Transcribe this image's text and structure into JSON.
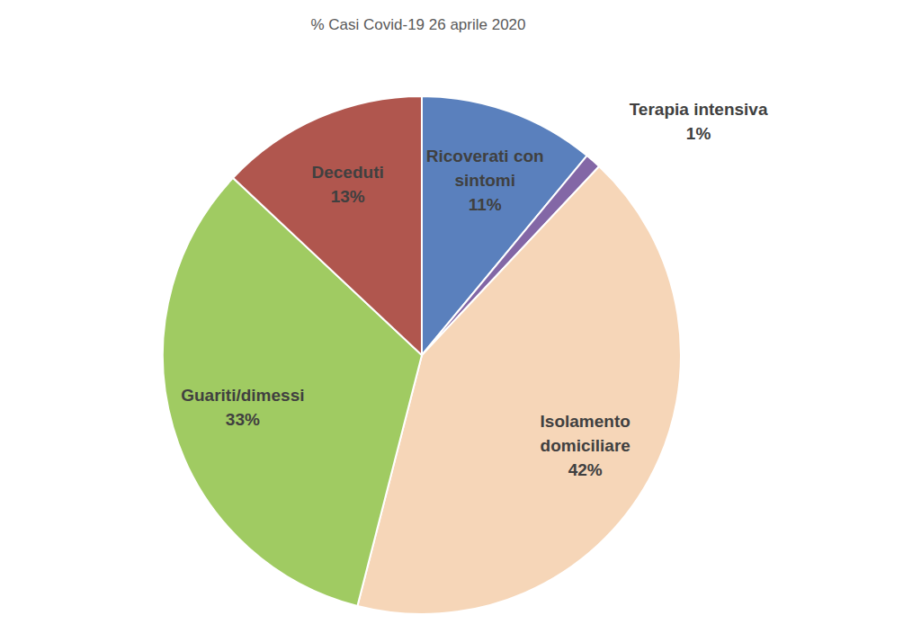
{
  "chart_data": {
    "type": "pie",
    "title": "% Casi Covid-19 26 aprile 2020",
    "categories": [
      "Ricoverati con sintomi",
      "Terapia intensiva",
      "Isolamento domiciliare",
      "Guariti/dimessi",
      "Deceduti"
    ],
    "values": [
      11,
      1,
      42,
      33,
      13
    ],
    "value_labels": [
      "11%",
      "1%",
      "42%",
      "33%",
      "13%"
    ],
    "colors": [
      "#5a80bd",
      "#8367a6",
      "#f6d6b8",
      "#a0cb62",
      "#b0564e"
    ],
    "data_labels": true
  }
}
